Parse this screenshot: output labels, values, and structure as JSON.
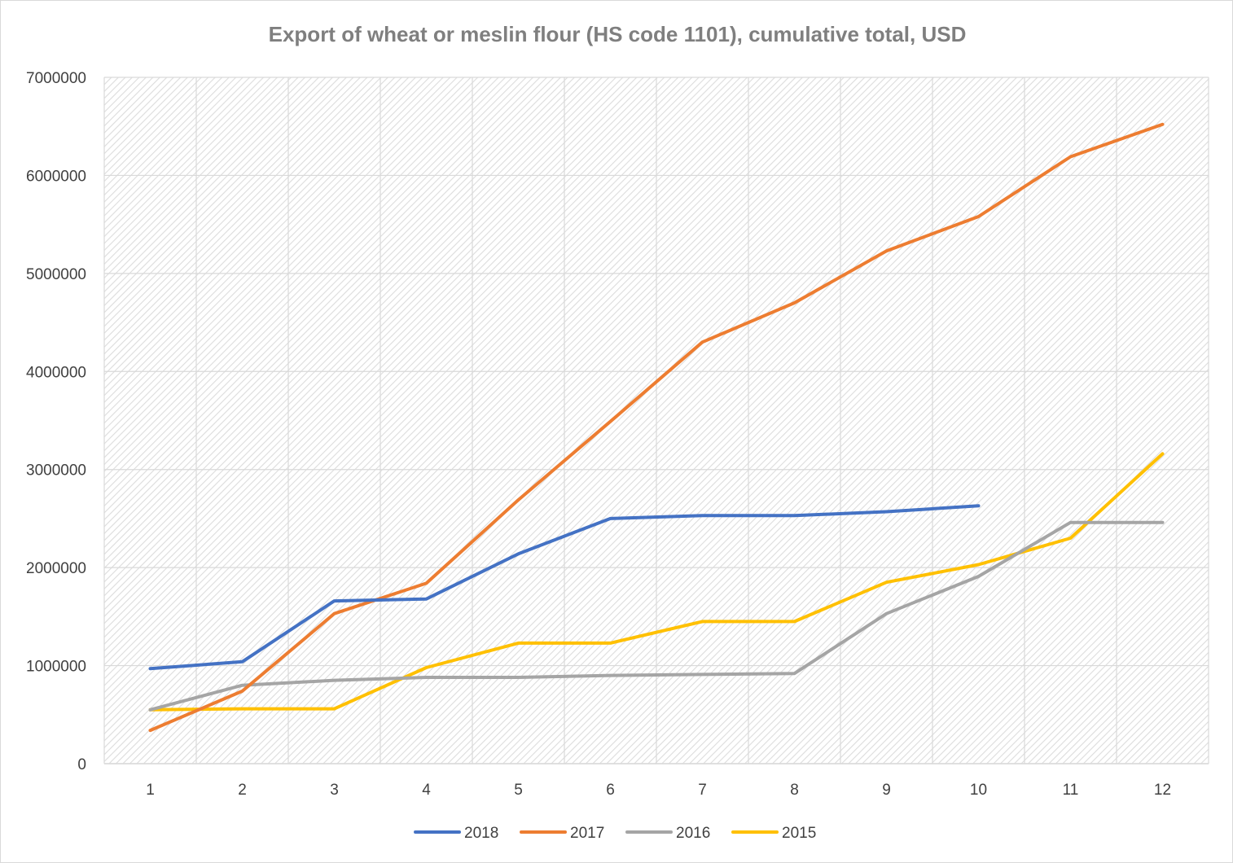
{
  "chart_data": {
    "type": "line",
    "title": "Export of wheat or meslin flour (HS code 1101), cumulative total, USD",
    "xlabel": "",
    "ylabel": "",
    "categories": [
      "1",
      "2",
      "3",
      "4",
      "5",
      "6",
      "7",
      "8",
      "9",
      "10",
      "11",
      "12"
    ],
    "ylim": [
      0,
      7000000
    ],
    "yticks": [
      "0",
      "1000000",
      "2000000",
      "3000000",
      "4000000",
      "5000000",
      "6000000",
      "7000000"
    ],
    "grid": true,
    "legend_position": "bottom",
    "series": [
      {
        "name": "2018",
        "color": "#4472c4",
        "values": [
          970000,
          1040000,
          1660000,
          1680000,
          2140000,
          2500000,
          2530000,
          2530000,
          2570000,
          2630000,
          null,
          null
        ]
      },
      {
        "name": "2017",
        "color": "#ed7d31",
        "values": [
          340000,
          740000,
          1530000,
          1840000,
          2690000,
          3490000,
          4300000,
          4700000,
          5230000,
          5580000,
          6190000,
          6520000
        ]
      },
      {
        "name": "2016",
        "color": "#a5a5a5",
        "values": [
          550000,
          800000,
          850000,
          880000,
          880000,
          900000,
          910000,
          920000,
          1530000,
          1910000,
          2460000,
          2460000
        ]
      },
      {
        "name": "2015",
        "color": "#ffc000",
        "values": [
          550000,
          560000,
          560000,
          980000,
          1230000,
          1230000,
          1450000,
          1450000,
          1850000,
          2030000,
          2300000,
          3160000
        ]
      }
    ]
  }
}
